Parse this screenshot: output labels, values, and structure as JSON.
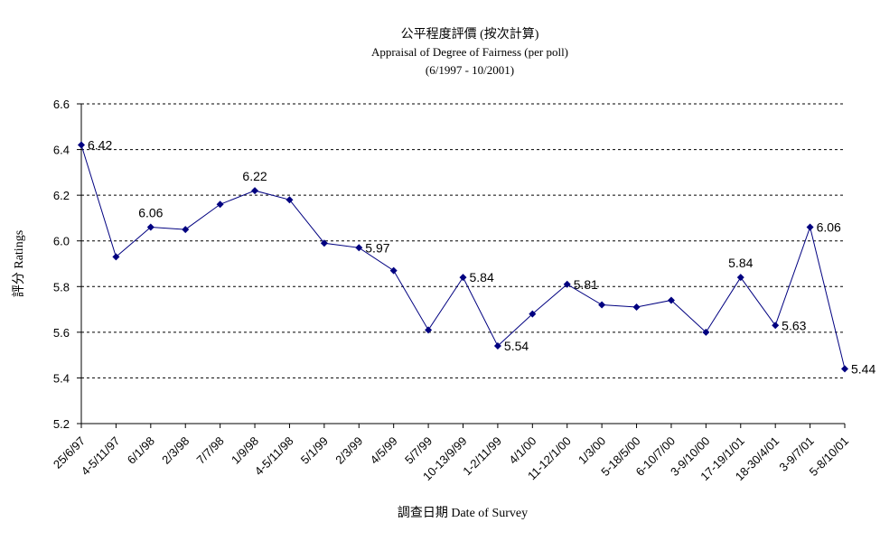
{
  "chart_data": {
    "type": "line",
    "title": "公平程度評價 (按次計算)",
    "subtitle": "Appraisal of Degree of Fairness (per poll)",
    "period": "(6/1997 - 10/2001)",
    "xlabel": "調查日期 Date of Survey",
    "ylabel": "評分 Ratings",
    "ylim": [
      5.2,
      6.6
    ],
    "yticks": [
      "5.2",
      "5.4",
      "5.6",
      "5.8",
      "6.0",
      "6.2",
      "6.4",
      "6.6"
    ],
    "grid": "horizontal-dashed",
    "categories": [
      "25/6/97",
      "4-5/11/97",
      "6/1/98",
      "2/3/98",
      "7/7/98",
      "1/9/98",
      "4-5/11/98",
      "5/1/99",
      "2/3/99",
      "4/5/99",
      "5/7/99",
      "10-13/9/99",
      "1-2/11/99",
      "4/1/00",
      "11-12/1/00",
      "1/3/00",
      "5-18/5/00",
      "6-10/7/00",
      "3-9/10/00",
      "17-19/1/01",
      "18-30/4/01",
      "3-9/7/01",
      "5-8/10/01"
    ],
    "series": [
      {
        "color": "#000080",
        "values": [
          6.42,
          5.93,
          6.06,
          6.05,
          6.16,
          6.22,
          6.18,
          5.99,
          5.97,
          5.87,
          5.61,
          5.84,
          5.54,
          5.68,
          5.81,
          5.72,
          5.71,
          5.74,
          5.6,
          5.84,
          5.63,
          6.06,
          5.44
        ],
        "labels": [
          {
            "index": 0,
            "text": "6.42",
            "pos": "right"
          },
          {
            "index": 2,
            "text": "6.06",
            "pos": "above"
          },
          {
            "index": 5,
            "text": "6.22",
            "pos": "above"
          },
          {
            "index": 8,
            "text": "5.97",
            "pos": "right"
          },
          {
            "index": 11,
            "text": "5.84",
            "pos": "right"
          },
          {
            "index": 12,
            "text": "5.54",
            "pos": "right"
          },
          {
            "index": 14,
            "text": "5.81",
            "pos": "right"
          },
          {
            "index": 19,
            "text": "5.84",
            "pos": "above"
          },
          {
            "index": 20,
            "text": "5.63",
            "pos": "right"
          },
          {
            "index": 21,
            "text": "6.06",
            "pos": "right"
          },
          {
            "index": 22,
            "text": "5.44",
            "pos": "right"
          }
        ]
      }
    ]
  }
}
